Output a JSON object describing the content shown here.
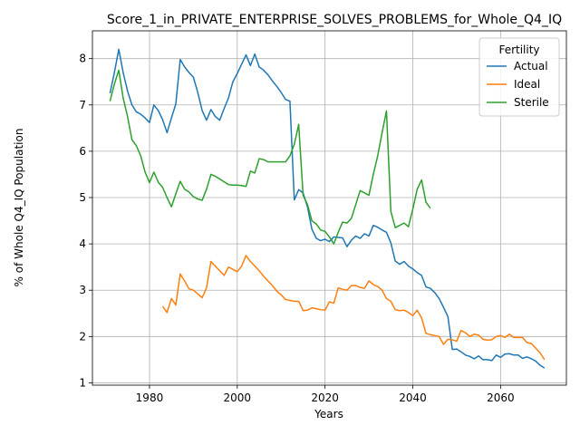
{
  "chart_data": {
    "type": "line",
    "title": "Score_1_in_PRIVATE_ENTERPRISE_SOLVES_PROBLEMS_for_Whole_Q4_IQ",
    "xlabel": "Years",
    "ylabel": "% of Whole Q4_IQ Population",
    "xlim": [
      1967,
      2075
    ],
    "ylim": [
      0.95,
      8.6
    ],
    "xticks": [
      1980,
      2000,
      2020,
      2040,
      2060
    ],
    "yticks": [
      1,
      2,
      3,
      4,
      5,
      6,
      7,
      8
    ],
    "grid": true,
    "legend": {
      "title": "Fertility",
      "position": "top-right"
    },
    "series": [
      {
        "name": "Actual",
        "color": "#1f77b4",
        "points": [
          [
            1971,
            7.25
          ],
          [
            1972,
            7.7
          ],
          [
            1973,
            8.2
          ],
          [
            1974,
            7.7
          ],
          [
            1975,
            7.3
          ],
          [
            1976,
            7.0
          ],
          [
            1977,
            6.85
          ],
          [
            1978,
            6.8
          ],
          [
            1979,
            6.72
          ],
          [
            1980,
            6.62
          ],
          [
            1981,
            7.0
          ],
          [
            1982,
            6.88
          ],
          [
            1983,
            6.68
          ],
          [
            1984,
            6.4
          ],
          [
            1985,
            6.72
          ],
          [
            1986,
            7.02
          ],
          [
            1987,
            7.98
          ],
          [
            1988,
            7.82
          ],
          [
            1989,
            7.7
          ],
          [
            1990,
            7.6
          ],
          [
            1991,
            7.27
          ],
          [
            1992,
            6.88
          ],
          [
            1993,
            6.67
          ],
          [
            1994,
            6.9
          ],
          [
            1995,
            6.75
          ],
          [
            1996,
            6.67
          ],
          [
            1997,
            6.92
          ],
          [
            1998,
            7.15
          ],
          [
            1999,
            7.5
          ],
          [
            2000,
            7.68
          ],
          [
            2001,
            7.88
          ],
          [
            2002,
            8.08
          ],
          [
            2003,
            7.85
          ],
          [
            2004,
            8.1
          ],
          [
            2005,
            7.82
          ],
          [
            2006,
            7.75
          ],
          [
            2007,
            7.65
          ],
          [
            2008,
            7.52
          ],
          [
            2009,
            7.4
          ],
          [
            2010,
            7.27
          ],
          [
            2011,
            7.12
          ],
          [
            2012,
            7.08
          ],
          [
            2013,
            4.95
          ],
          [
            2014,
            5.17
          ],
          [
            2015,
            5.1
          ],
          [
            2016,
            4.8
          ],
          [
            2017,
            4.32
          ],
          [
            2018,
            4.12
          ],
          [
            2019,
            4.07
          ],
          [
            2020,
            4.1
          ],
          [
            2021,
            4.05
          ],
          [
            2022,
            4.15
          ],
          [
            2023,
            4.14
          ],
          [
            2024,
            4.13
          ],
          [
            2025,
            3.94
          ],
          [
            2026,
            4.08
          ],
          [
            2027,
            4.17
          ],
          [
            2028,
            4.12
          ],
          [
            2029,
            4.22
          ],
          [
            2030,
            4.17
          ],
          [
            2031,
            4.4
          ],
          [
            2032,
            4.36
          ],
          [
            2033,
            4.3
          ],
          [
            2034,
            4.25
          ],
          [
            2035,
            4.02
          ],
          [
            2036,
            3.63
          ],
          [
            2037,
            3.56
          ],
          [
            2038,
            3.62
          ],
          [
            2039,
            3.52
          ],
          [
            2040,
            3.46
          ],
          [
            2041,
            3.38
          ],
          [
            2042,
            3.32
          ],
          [
            2043,
            3.07
          ],
          [
            2044,
            3.04
          ],
          [
            2045,
            2.95
          ],
          [
            2046,
            2.82
          ],
          [
            2047,
            2.63
          ],
          [
            2048,
            2.43
          ],
          [
            2049,
            1.72
          ],
          [
            2050,
            1.73
          ],
          [
            2051,
            1.67
          ],
          [
            2052,
            1.6
          ],
          [
            2053,
            1.57
          ],
          [
            2054,
            1.52
          ],
          [
            2055,
            1.58
          ],
          [
            2056,
            1.5
          ],
          [
            2057,
            1.5
          ],
          [
            2058,
            1.48
          ],
          [
            2059,
            1.6
          ],
          [
            2060,
            1.55
          ],
          [
            2061,
            1.62
          ],
          [
            2062,
            1.63
          ],
          [
            2063,
            1.6
          ],
          [
            2064,
            1.6
          ],
          [
            2065,
            1.53
          ],
          [
            2066,
            1.56
          ],
          [
            2067,
            1.52
          ],
          [
            2068,
            1.47
          ],
          [
            2069,
            1.38
          ],
          [
            2070,
            1.32
          ]
        ]
      },
      {
        "name": "Ideal",
        "color": "#ff7f0e",
        "points": [
          [
            1983,
            2.65
          ],
          [
            1984,
            2.52
          ],
          [
            1985,
            2.82
          ],
          [
            1986,
            2.68
          ],
          [
            1987,
            3.35
          ],
          [
            1988,
            3.2
          ],
          [
            1989,
            3.03
          ],
          [
            1990,
            3.0
          ],
          [
            1991,
            2.92
          ],
          [
            1992,
            2.84
          ],
          [
            1993,
            3.05
          ],
          [
            1994,
            3.62
          ],
          [
            1995,
            3.52
          ],
          [
            1996,
            3.42
          ],
          [
            1997,
            3.32
          ],
          [
            1998,
            3.5
          ],
          [
            1999,
            3.45
          ],
          [
            2000,
            3.4
          ],
          [
            2001,
            3.52
          ],
          [
            2002,
            3.75
          ],
          [
            2003,
            3.62
          ],
          [
            2004,
            3.52
          ],
          [
            2005,
            3.42
          ],
          [
            2006,
            3.3
          ],
          [
            2007,
            3.2
          ],
          [
            2008,
            3.1
          ],
          [
            2009,
            2.98
          ],
          [
            2010,
            2.9
          ],
          [
            2011,
            2.8
          ],
          [
            2012,
            2.78
          ],
          [
            2013,
            2.76
          ],
          [
            2014,
            2.76
          ],
          [
            2015,
            2.56
          ],
          [
            2016,
            2.57
          ],
          [
            2017,
            2.62
          ],
          [
            2018,
            2.6
          ],
          [
            2019,
            2.58
          ],
          [
            2020,
            2.57
          ],
          [
            2021,
            2.75
          ],
          [
            2022,
            2.72
          ],
          [
            2023,
            3.05
          ],
          [
            2024,
            3.02
          ],
          [
            2025,
            3.0
          ],
          [
            2026,
            3.1
          ],
          [
            2027,
            3.1
          ],
          [
            2028,
            3.06
          ],
          [
            2029,
            3.04
          ],
          [
            2030,
            3.2
          ],
          [
            2031,
            3.12
          ],
          [
            2032,
            3.08
          ],
          [
            2033,
            3.0
          ],
          [
            2034,
            2.82
          ],
          [
            2035,
            2.76
          ],
          [
            2036,
            2.58
          ],
          [
            2037,
            2.56
          ],
          [
            2038,
            2.57
          ],
          [
            2039,
            2.52
          ],
          [
            2040,
            2.45
          ],
          [
            2041,
            2.57
          ],
          [
            2042,
            2.4
          ],
          [
            2043,
            2.07
          ],
          [
            2044,
            2.04
          ],
          [
            2045,
            2.02
          ],
          [
            2046,
            2.0
          ],
          [
            2047,
            1.83
          ],
          [
            2048,
            1.94
          ],
          [
            2049,
            1.93
          ],
          [
            2050,
            1.9
          ],
          [
            2051,
            2.13
          ],
          [
            2052,
            2.08
          ],
          [
            2053,
            2.0
          ],
          [
            2054,
            2.05
          ],
          [
            2055,
            2.03
          ],
          [
            2056,
            1.94
          ],
          [
            2057,
            1.92
          ],
          [
            2058,
            1.93
          ],
          [
            2059,
            2.0
          ],
          [
            2060,
            2.02
          ],
          [
            2061,
            1.98
          ],
          [
            2062,
            2.05
          ],
          [
            2063,
            1.98
          ],
          [
            2064,
            1.98
          ],
          [
            2065,
            1.98
          ],
          [
            2066,
            1.87
          ],
          [
            2067,
            1.85
          ],
          [
            2068,
            1.75
          ],
          [
            2069,
            1.65
          ],
          [
            2070,
            1.5
          ]
        ]
      },
      {
        "name": "Sterile",
        "color": "#2ca02c",
        "points": [
          [
            1971,
            7.08
          ],
          [
            1972,
            7.45
          ],
          [
            1973,
            7.75
          ],
          [
            1974,
            7.15
          ],
          [
            1975,
            6.75
          ],
          [
            1976,
            6.25
          ],
          [
            1977,
            6.12
          ],
          [
            1978,
            5.9
          ],
          [
            1979,
            5.55
          ],
          [
            1980,
            5.32
          ],
          [
            1981,
            5.55
          ],
          [
            1982,
            5.33
          ],
          [
            1983,
            5.22
          ],
          [
            1984,
            5.0
          ],
          [
            1985,
            4.8
          ],
          [
            1986,
            5.08
          ],
          [
            1987,
            5.35
          ],
          [
            1988,
            5.18
          ],
          [
            1989,
            5.12
          ],
          [
            1990,
            5.02
          ],
          [
            1991,
            4.97
          ],
          [
            1992,
            4.94
          ],
          [
            1993,
            5.18
          ],
          [
            1994,
            5.5
          ],
          [
            1995,
            5.46
          ],
          [
            1996,
            5.4
          ],
          [
            1997,
            5.34
          ],
          [
            1998,
            5.28
          ],
          [
            1999,
            5.27
          ],
          [
            2000,
            5.27
          ],
          [
            2001,
            5.26
          ],
          [
            2002,
            5.24
          ],
          [
            2003,
            5.57
          ],
          [
            2004,
            5.53
          ],
          [
            2005,
            5.84
          ],
          [
            2006,
            5.82
          ],
          [
            2007,
            5.77
          ],
          [
            2008,
            5.77
          ],
          [
            2009,
            5.77
          ],
          [
            2010,
            5.77
          ],
          [
            2011,
            5.77
          ],
          [
            2012,
            5.9
          ],
          [
            2013,
            6.15
          ],
          [
            2014,
            6.58
          ],
          [
            2015,
            5.05
          ],
          [
            2016,
            4.85
          ],
          [
            2017,
            4.5
          ],
          [
            2018,
            4.43
          ],
          [
            2019,
            4.3
          ],
          [
            2020,
            4.27
          ],
          [
            2021,
            4.15
          ],
          [
            2022,
            4.0
          ],
          [
            2023,
            4.25
          ],
          [
            2024,
            4.47
          ],
          [
            2025,
            4.45
          ],
          [
            2026,
            4.55
          ],
          [
            2027,
            4.85
          ],
          [
            2028,
            5.15
          ],
          [
            2029,
            5.1
          ],
          [
            2030,
            5.05
          ],
          [
            2031,
            5.5
          ],
          [
            2032,
            5.9
          ],
          [
            2033,
            6.4
          ],
          [
            2034,
            6.87
          ],
          [
            2035,
            4.7
          ],
          [
            2036,
            4.35
          ],
          [
            2037,
            4.4
          ],
          [
            2038,
            4.45
          ],
          [
            2039,
            4.37
          ],
          [
            2040,
            4.75
          ],
          [
            2041,
            5.18
          ],
          [
            2042,
            5.38
          ],
          [
            2043,
            4.9
          ],
          [
            2044,
            4.77
          ]
        ]
      }
    ]
  }
}
